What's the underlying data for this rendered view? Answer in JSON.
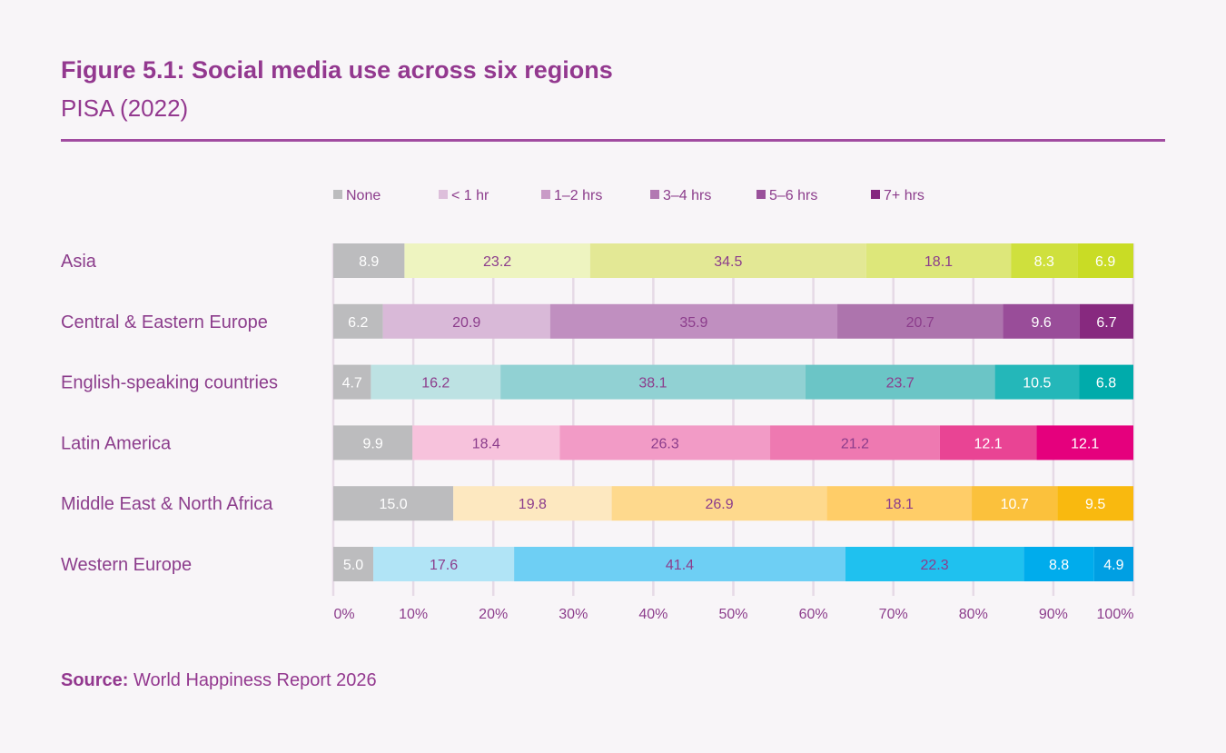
{
  "header": {
    "title": "Figure 5.1: Social media use across six regions",
    "subtitle": "PISA (2022)"
  },
  "footer": {
    "source_label": "Source:",
    "source_text": "World Happiness Report 2026"
  },
  "chart_data": {
    "type": "bar",
    "orientation": "horizontal",
    "stacked": true,
    "categories": [
      "Asia",
      "Central & Eastern Europe",
      "English-speaking countries",
      "Latin America",
      "Middle East & North Africa",
      "Western Europe"
    ],
    "series": [
      {
        "name": "None",
        "legend_color": "#bcbcbe",
        "values": [
          8.9,
          6.2,
          4.7,
          9.9,
          15.0,
          5.0
        ]
      },
      {
        "name": "< 1 hr",
        "legend_color": "#ddbfdb",
        "values": [
          23.2,
          20.9,
          16.2,
          18.4,
          19.8,
          17.6
        ]
      },
      {
        "name": "1–2 hrs",
        "legend_color": "#c99bc7",
        "values": [
          34.5,
          35.9,
          38.1,
          26.3,
          26.9,
          41.4
        ]
      },
      {
        "name": "3–4 hrs",
        "legend_color": "#b279b2",
        "values": [
          18.1,
          20.7,
          23.7,
          21.2,
          18.1,
          22.3
        ]
      },
      {
        "name": "5–6 hrs",
        "legend_color": "#9a519b",
        "values": [
          8.3,
          9.6,
          10.5,
          12.1,
          10.7,
          8.8
        ]
      },
      {
        "name": "7+ hrs",
        "legend_color": "#85287f",
        "values": [
          6.9,
          6.7,
          6.8,
          12.1,
          9.5,
          4.9
        ]
      }
    ],
    "value_labels": [
      [
        "8.9",
        "23.2",
        "34.5",
        "18.1",
        "8.3",
        "6.9"
      ],
      [
        "6.2",
        "20.9",
        "35.9",
        "20.7",
        "9.6",
        "6.7"
      ],
      [
        "4.7",
        "16.2",
        "38.1",
        "23.7",
        "10.5",
        "6.8"
      ],
      [
        "9.9",
        "18.4",
        "26.3",
        "21.2",
        "12.1",
        "12.1"
      ],
      [
        "15.0",
        "19.8",
        "26.9",
        "18.1",
        "10.7",
        "9.5"
      ],
      [
        "5.0",
        "17.6",
        "41.4",
        "22.3",
        "8.8",
        "4.9"
      ]
    ],
    "row_colors": [
      [
        "#bcbcbe",
        "#eef4c0",
        "#e3e895",
        "#dde77a",
        "#cfe03d",
        "#c9dc25"
      ],
      [
        "#bcbcbe",
        "#d9b9d8",
        "#c08fc0",
        "#ad74ad",
        "#994d99",
        "#87297f"
      ],
      [
        "#bcbcbe",
        "#bde2e3",
        "#91d1d3",
        "#6bc5c6",
        "#24b7b9",
        "#00abab"
      ],
      [
        "#bcbcbe",
        "#f7c2dc",
        "#f29bc6",
        "#ee79b1",
        "#e94494",
        "#e5007d"
      ],
      [
        "#bcbcbe",
        "#fde8c0",
        "#fed98d",
        "#ffcd68",
        "#fbc13c",
        "#f9b90f"
      ],
      [
        "#bcbcbe",
        "#b1e4f6",
        "#6ecff4",
        "#1fc1ef",
        "#00acec",
        "#009fe3"
      ]
    ],
    "value_label_colors": [
      "#ffffff",
      "#8c3d8c",
      "#8c3d8c",
      "#8c3d8c",
      "#ffffff",
      "#ffffff"
    ],
    "xlim": [
      0,
      100
    ],
    "x_ticks": [
      "0%",
      "10%",
      "20%",
      "30%",
      "40%",
      "50%",
      "60%",
      "70%",
      "80%",
      "90%",
      "100%"
    ],
    "grid": true,
    "legend_position": "top"
  }
}
